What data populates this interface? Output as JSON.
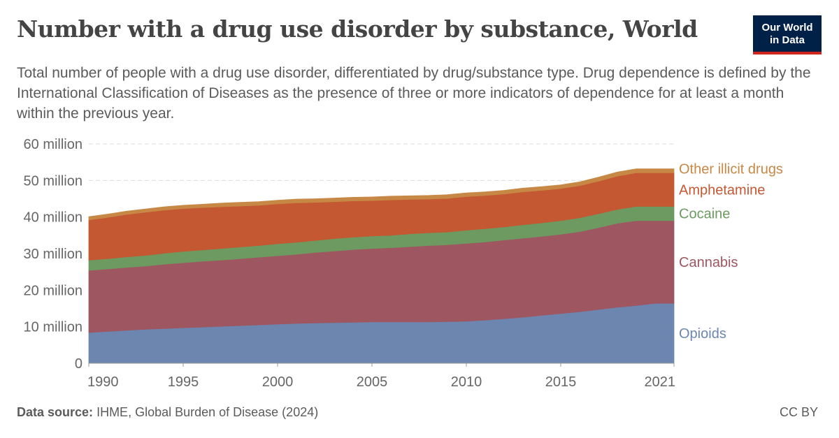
{
  "header": {
    "title": "Number with a drug use disorder by substance, World",
    "subtitle": "Total number of people with a drug use disorder, differentiated by drug/substance type. Drug dependence is defined by the International Classification of Diseases as the presence of three or more indicators of dependence for at least a month within the previous year.",
    "logo_line1": "Our World",
    "logo_line2": "in Data"
  },
  "footer": {
    "source_label": "Data source:",
    "source_text": "IHME, Global Burden of Disease (2024)",
    "license": "CC BY"
  },
  "colors": {
    "Opioids": "#6d86b0",
    "Cannabis": "#9e5660",
    "Cocaine": "#6c9a61",
    "Amphetamine": "#c35832",
    "Other illicit drugs": "#c88845",
    "grid": "#dddddd",
    "axis_text": "#666666"
  },
  "chart_data": {
    "type": "area",
    "stacked": true,
    "x": [
      1990,
      1991,
      1992,
      1993,
      1994,
      1995,
      1996,
      1997,
      1998,
      1999,
      2000,
      2001,
      2002,
      2003,
      2004,
      2005,
      2006,
      2007,
      2008,
      2009,
      2010,
      2011,
      2012,
      2013,
      2014,
      2015,
      2016,
      2017,
      2018,
      2019,
      2020,
      2021
    ],
    "series": [
      {
        "name": "Opioids",
        "values": [
          8.4,
          8.7,
          9.0,
          9.3,
          9.5,
          9.7,
          9.9,
          10.1,
          10.3,
          10.5,
          10.7,
          10.9,
          11.0,
          11.1,
          11.2,
          11.3,
          11.3,
          11.3,
          11.3,
          11.4,
          11.5,
          11.8,
          12.2,
          12.6,
          13.1,
          13.6,
          14.1,
          14.7,
          15.3,
          15.8,
          16.4,
          16.4
        ]
      },
      {
        "name": "Cannabis",
        "values": [
          17.0,
          17.1,
          17.2,
          17.3,
          17.6,
          17.8,
          18.0,
          18.1,
          18.3,
          18.5,
          18.7,
          18.9,
          19.3,
          19.6,
          19.9,
          20.1,
          20.3,
          20.6,
          20.9,
          21.0,
          21.3,
          21.4,
          21.5,
          21.6,
          21.6,
          21.7,
          21.9,
          22.4,
          23.0,
          23.2,
          22.6,
          22.6
        ]
      },
      {
        "name": "Cocaine",
        "values": [
          2.8,
          2.8,
          2.9,
          2.9,
          3.0,
          3.1,
          3.1,
          3.2,
          3.2,
          3.2,
          3.3,
          3.3,
          3.3,
          3.4,
          3.4,
          3.4,
          3.4,
          3.5,
          3.5,
          3.5,
          3.6,
          3.6,
          3.6,
          3.7,
          3.7,
          3.7,
          3.8,
          3.8,
          3.8,
          3.9,
          3.9,
          3.9
        ]
      },
      {
        "name": "Amphetamine",
        "values": [
          11.0,
          11.3,
          11.6,
          11.8,
          11.8,
          11.7,
          11.6,
          11.4,
          11.2,
          11.0,
          10.9,
          10.8,
          10.4,
          10.1,
          9.9,
          9.7,
          9.7,
          9.4,
          9.2,
          9.2,
          9.2,
          9.1,
          9.0,
          9.0,
          8.9,
          8.8,
          8.8,
          8.9,
          9.1,
          9.2,
          9.2,
          9.2
        ]
      },
      {
        "name": "Other illicit drugs",
        "values": [
          0.9,
          0.9,
          0.9,
          0.9,
          0.9,
          0.9,
          0.9,
          1.0,
          1.0,
          1.0,
          1.0,
          1.0,
          1.0,
          1.0,
          1.0,
          1.0,
          1.0,
          1.0,
          1.0,
          1.0,
          1.0,
          1.0,
          1.0,
          1.0,
          1.0,
          1.0,
          1.0,
          1.1,
          1.1,
          1.1,
          1.1,
          1.1
        ]
      }
    ],
    "ylim": [
      0,
      60
    ],
    "y_ticks": [
      0,
      10,
      20,
      30,
      40,
      50,
      60
    ],
    "y_tick_labels": [
      "0",
      "10 million",
      "20 million",
      "30 million",
      "40 million",
      "50 million",
      "60 million"
    ],
    "x_ticks": [
      1990,
      1995,
      2000,
      2005,
      2010,
      2015,
      2021
    ],
    "x_tick_labels": [
      "1990",
      "1995",
      "2000",
      "2005",
      "2010",
      "2015",
      "2021"
    ],
    "grid": true,
    "legend_position": "right, labels at series ends"
  }
}
